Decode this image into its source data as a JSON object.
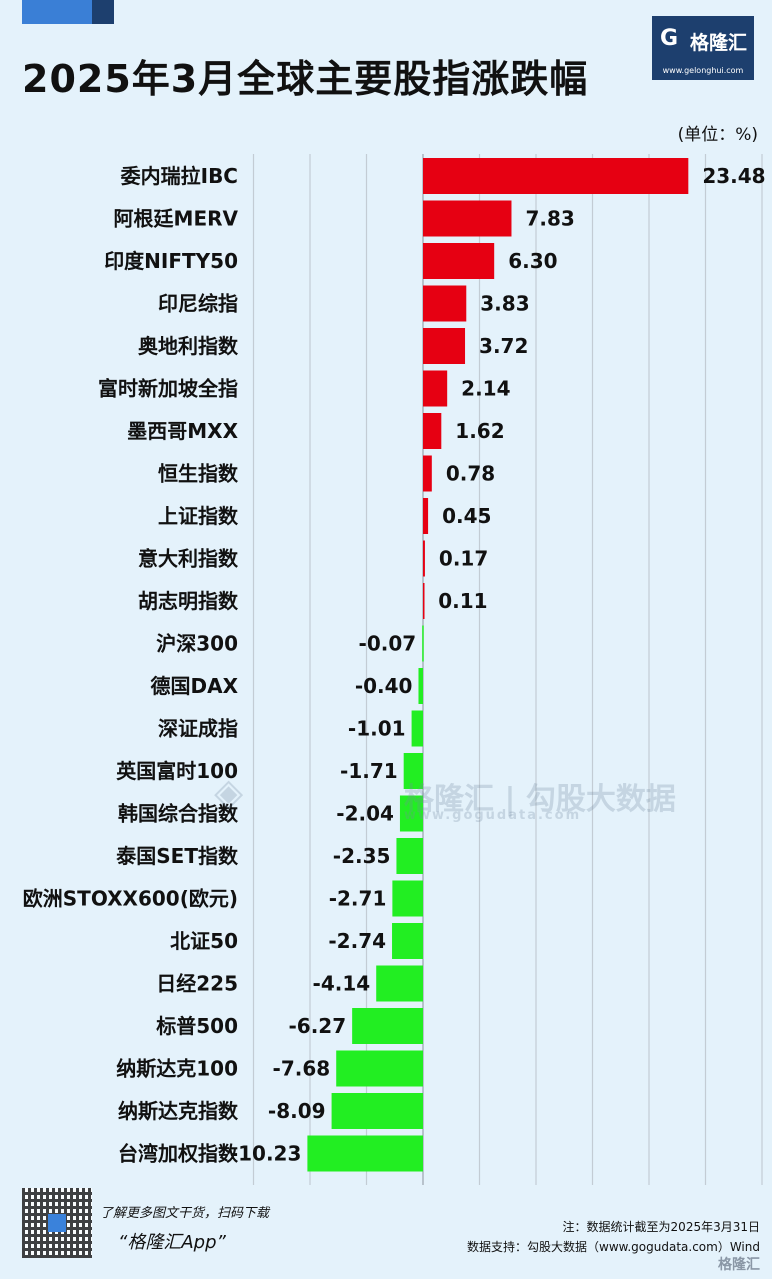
{
  "header": {
    "title": "2025年3月全球主要股指涨跌幅",
    "logo_text": "格隆汇",
    "logo_url": "www.gelonghui.com",
    "unit": "(单位：%)"
  },
  "chart_data": {
    "type": "bar",
    "orientation": "horizontal",
    "categories": [
      "委内瑞拉IBC",
      "阿根廷MERV",
      "印度NIFTY50",
      "印尼综指",
      "奥地利指数",
      "富时新加坡全指",
      "墨西哥MXX",
      "恒生指数",
      "上证指数",
      "意大利指数",
      "胡志明指数",
      "沪深300",
      "德国DAX",
      "深证成指",
      "英国富时100",
      "韩国综合指数",
      "泰国SET指数",
      "欧洲STOXX600(欧元)",
      "北证50",
      "日经225",
      "标普500",
      "纳斯达克100",
      "纳斯达克指数",
      "台湾加权指数"
    ],
    "values": [
      23.48,
      7.83,
      6.3,
      3.83,
      3.72,
      2.14,
      1.62,
      0.78,
      0.45,
      0.17,
      0.11,
      -0.07,
      -0.4,
      -1.01,
      -1.71,
      -2.04,
      -2.35,
      -2.71,
      -2.74,
      -4.14,
      -6.27,
      -7.68,
      -8.09,
      -10.23
    ],
    "labels": [
      "23.48",
      "7.83",
      "6.30",
      "3.83",
      "3.72",
      "2.14",
      "1.62",
      "0.78",
      "0.45",
      "0.17",
      "0.11",
      "-0.07",
      "-0.40",
      "-1.01",
      "-1.71",
      "-2.04",
      "-2.35",
      "-2.71",
      "-2.74",
      "-4.14",
      "-6.27",
      "-7.68",
      "-8.09",
      "-10.23"
    ],
    "xlim": [
      -15,
      30
    ],
    "grid": true,
    "colors": {
      "positive": "#e60012",
      "negative": "#22ee22"
    }
  },
  "watermark": {
    "name": "格隆汇 | 勾股大数据",
    "url": "www.gogudata.com"
  },
  "footer": {
    "promo_line1": "了解更多图文干货，扫码下载",
    "promo_line2": "“格隆汇App”",
    "note": "注：数据统计截至为2025年3月31日",
    "source": "数据支持：勾股大数据（www.gogudata.com）Wind",
    "logo_text": "格隆汇"
  }
}
